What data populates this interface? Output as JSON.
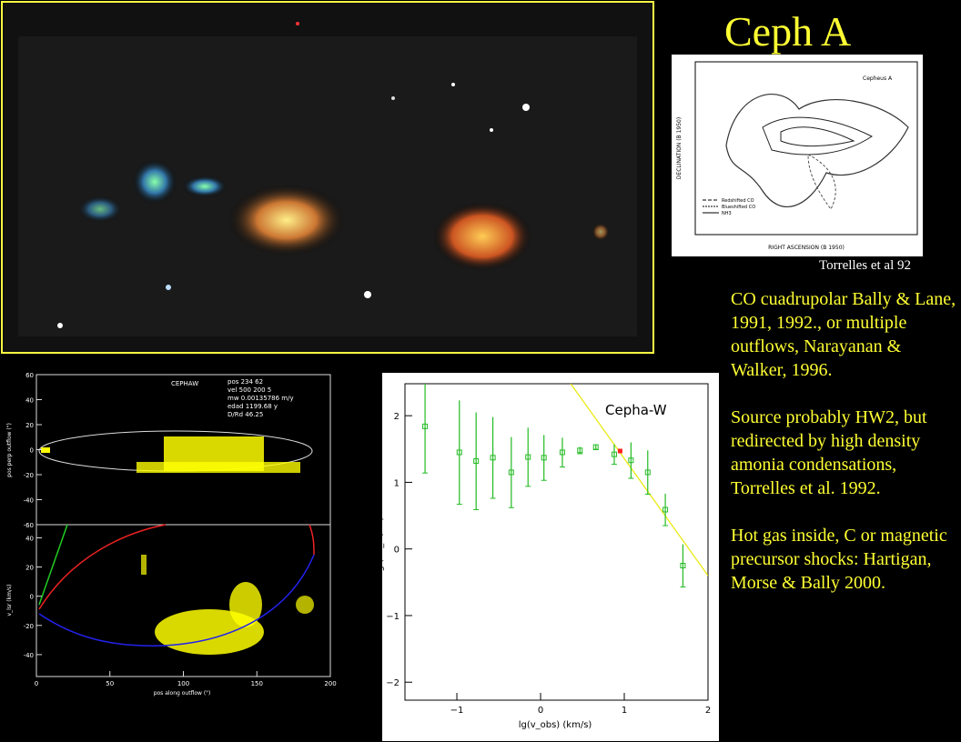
{
  "title": "Ceph A",
  "citation": "Torrelles et al 92",
  "paragraphs": [
    "CO cuadrupolar Bally & Lane, 1991, 1992., or multiple outflows, Narayanan & Walker, 1996.",
    "Source probably HW2, but redirected by high density amonia condensations, Torrelles et al. 1992.",
    "Hot gas inside, C or magnetic precursor shocks: Hartigan, Morse & Bally 2000."
  ],
  "map_inset": {
    "label": "Cepheus A",
    "xlabel": "RIGHT ASCENSION (B 1950)",
    "ylabel": "DECLINATION (B 1950)",
    "legend": [
      "Redshifted CO",
      "Blueshifted CO",
      "NH3"
    ]
  },
  "position_plot": {
    "label": "CEPHAW",
    "info": [
      "pos 234 62",
      "vel 500 200 5",
      "mw 0.00135786 m/y",
      "edad 1199.68 y",
      "D/Rd 46.25"
    ],
    "top_ylabel": "pos perp outflow (\")",
    "bottom_ylabel": "v_lsr (km/s)",
    "xlabel": "pos along outflow (\")",
    "xlim": [
      0,
      200
    ],
    "xticks": [
      0,
      50,
      100,
      150,
      200
    ],
    "top_ylim": [
      -60,
      60
    ],
    "top_yticks": [
      60,
      40,
      20,
      0,
      -20,
      -40,
      -60
    ],
    "bottom_ylim": [
      -55,
      49
    ],
    "bottom_yticks": [
      40,
      20,
      0,
      -20,
      -40
    ]
  },
  "spectrum_plot": {
    "label": "Cepha-W",
    "xlabel": "lg(v_obs) (km/s)",
    "ylabel": "lg (Σ I_v /Δv)",
    "xlim": [
      -1.62,
      2
    ],
    "ylim": [
      -2.27,
      2.48
    ],
    "xticks": [
      {
        "value": -1,
        "label": "−1"
      },
      0,
      1,
      2
    ],
    "yticks": [
      2,
      1,
      0,
      {
        "value": -1,
        "label": "−1"
      },
      {
        "value": -2,
        "label": "−2"
      }
    ],
    "x": [
      -1.38,
      -0.97,
      -0.77,
      -0.57,
      -0.35,
      -0.15,
      0.04,
      0.26,
      0.47,
      0.66,
      0.88,
      1.08,
      1.28,
      1.49,
      1.7
    ],
    "values": [
      1.84,
      1.45,
      1.32,
      1.37,
      1.15,
      1.38,
      1.37,
      1.45,
      1.48,
      1.53,
      1.42,
      1.33,
      1.15,
      0.59,
      -0.25
    ],
    "errors": [
      0.7,
      0.78,
      0.73,
      0.61,
      0.53,
      0.44,
      0.34,
      0.22,
      0.05,
      0.04,
      0.15,
      0.27,
      0.33,
      0.24,
      0.32
    ],
    "color": "#22bb22",
    "highlight": {
      "x": 0.95,
      "value": 1.47,
      "color": "#ff2020"
    },
    "fit_line": {
      "x": [
        0.36,
        2
      ],
      "values": [
        2.48,
        -0.4
      ],
      "color": "#e8e800"
    }
  }
}
